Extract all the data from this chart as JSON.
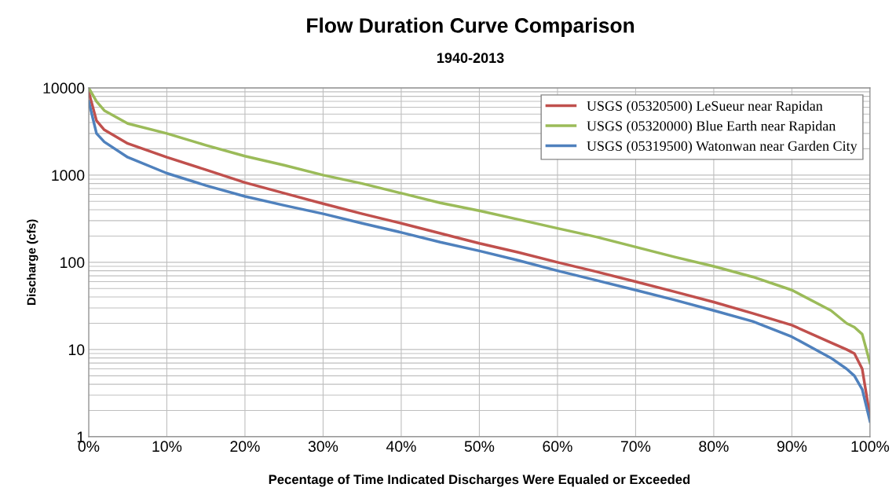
{
  "chart_data": {
    "type": "line",
    "title": "Flow Duration Curve Comparison",
    "subtitle": "1940-2013",
    "xlabel": "Pecentage of Time Indicated Discharges Were Equaled or Exceeded",
    "ylabel": "Discharge (cfs)",
    "log": "y",
    "grid": true,
    "legend": "top right",
    "marker": "none",
    "line_style": "solid",
    "xlim": [
      0,
      100
    ],
    "xticks": [
      {
        "value": 0,
        "label": "0%"
      },
      {
        "value": 10,
        "label": "10%"
      },
      {
        "value": 20,
        "label": "20%"
      },
      {
        "value": 30,
        "label": "30%"
      },
      {
        "value": 40,
        "label": "40%"
      },
      {
        "value": 50,
        "label": "50%"
      },
      {
        "value": 60,
        "label": "60%"
      },
      {
        "value": 70,
        "label": "70%"
      },
      {
        "value": 80,
        "label": "80%"
      },
      {
        "value": 90,
        "label": "90%"
      },
      {
        "value": 100,
        "label": "100%"
      }
    ],
    "ylim": [
      1,
      10000
    ],
    "yticks": [
      1,
      10,
      100,
      1000,
      10000
    ],
    "x": [
      0,
      1,
      2,
      5,
      10,
      15,
      20,
      25,
      30,
      35,
      40,
      45,
      50,
      55,
      60,
      65,
      70,
      75,
      80,
      85,
      90,
      95,
      97,
      98,
      99,
      100
    ],
    "series": [
      {
        "name": "USGS (05320500) LeSueur near Rapidan",
        "color": "#c0504d",
        "values": [
          9000,
          4200,
          3300,
          2300,
          1600,
          1150,
          820,
          620,
          470,
          360,
          280,
          215,
          165,
          130,
          100,
          78,
          60,
          46,
          35,
          26,
          19,
          12,
          10,
          9,
          6,
          1.7
        ]
      },
      {
        "name": "USGS (05320000) Blue Earth near Rapidan",
        "color": "#9bbb59",
        "values": [
          10000,
          7000,
          5500,
          3900,
          3000,
          2200,
          1650,
          1300,
          1000,
          800,
          620,
          480,
          390,
          310,
          245,
          195,
          150,
          115,
          90,
          68,
          48,
          28,
          20,
          18,
          15,
          7
        ]
      },
      {
        "name": "USGS (05319500) Watonwan near Garden City",
        "color": "#4f81bd",
        "values": [
          7000,
          3000,
          2400,
          1600,
          1050,
          760,
          570,
          450,
          360,
          280,
          220,
          170,
          135,
          105,
          80,
          62,
          48,
          37,
          28,
          21,
          14,
          8,
          6,
          5,
          3.5,
          1.5
        ]
      }
    ]
  }
}
